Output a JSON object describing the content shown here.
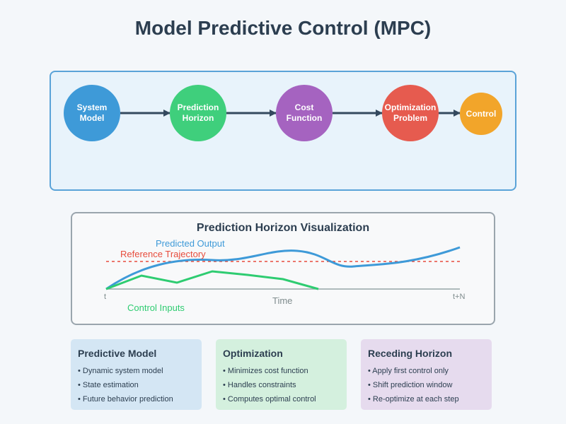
{
  "title": "Model Predictive Control (MPC)",
  "flow": {
    "nodes": [
      {
        "label": "System\nModel",
        "color": "#3e9ad8"
      },
      {
        "label": "Prediction\nHorizon",
        "color": "#3fcf7c"
      },
      {
        "label": "Cost\nFunction",
        "color": "#a563c0"
      },
      {
        "label": "Optimization\nProblem",
        "color": "#e65b4f"
      },
      {
        "label": "Control",
        "color": "#f2a52a"
      }
    ],
    "arrow_color": "#34495e"
  },
  "viz": {
    "title": "Prediction Horizon Visualization",
    "predicted_label": "Predicted Output",
    "reference_label": "Reference Trajectory",
    "control_label": "Control Inputs",
    "time_label": "Time",
    "t_start": "t",
    "t_end": "t+N",
    "colors": {
      "predicted": "#3e9ad8",
      "reference": "#e74c3c",
      "control": "#2ecc71"
    }
  },
  "cards": [
    {
      "title": "Predictive Model",
      "bg": "#d4e6f4",
      "items": [
        "• Dynamic system model",
        "• State estimation",
        "• Future behavior prediction"
      ]
    },
    {
      "title": "Optimization",
      "bg": "#d4f0de",
      "items": [
        "• Minimizes cost function",
        "• Handles constraints",
        "• Computes optimal control"
      ]
    },
    {
      "title": "Receding Horizon",
      "bg": "#e6dbee",
      "items": [
        "• Apply first control only",
        "• Shift prediction window",
        "• Re-optimize at each step"
      ]
    }
  ]
}
